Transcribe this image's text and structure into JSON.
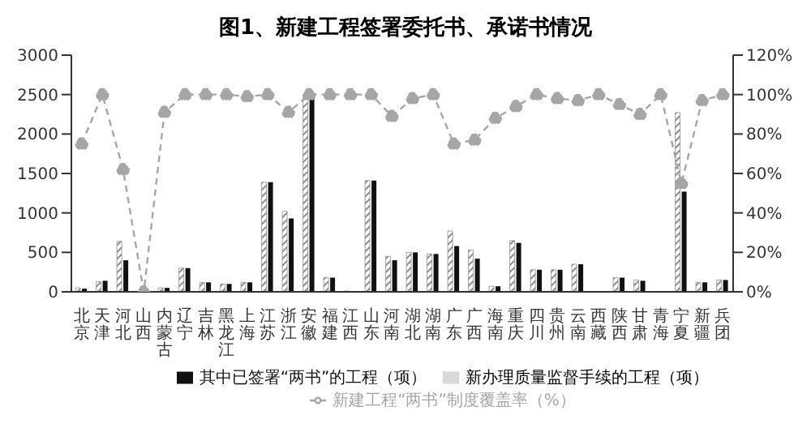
{
  "chart_data": {
    "type": "bar",
    "title": "图1、新建工程签署委托书、承诺书情况",
    "categories": [
      "北京",
      "天津",
      "河北",
      "山西",
      "内蒙古",
      "辽宁",
      "吉林",
      "黑龙江",
      "上海",
      "江苏",
      "浙江",
      "安徽",
      "福建",
      "江西",
      "山东",
      "河南",
      "湖北",
      "湖南",
      "广东",
      "广西",
      "海南",
      "重庆",
      "四川",
      "贵州",
      "云南",
      "西藏",
      "陕西",
      "甘肃",
      "青海",
      "宁夏",
      "新疆",
      "兵团"
    ],
    "series": [
      {
        "name": "新办理质量监督手续的工程（项）",
        "color": "#8c8c8c",
        "values": [
          50,
          130,
          640,
          0,
          50,
          300,
          120,
          100,
          120,
          1390,
          1020,
          2500,
          180,
          10,
          1410,
          450,
          500,
          480,
          770,
          530,
          70,
          650,
          280,
          280,
          350,
          0,
          180,
          150,
          0,
          2270,
          120,
          150
        ]
      },
      {
        "name": "其中已签署“两书”的工程（项）",
        "color": "#111111",
        "values": [
          40,
          140,
          400,
          0,
          50,
          300,
          120,
          100,
          120,
          1390,
          930,
          2450,
          180,
          10,
          1410,
          400,
          500,
          480,
          580,
          420,
          70,
          620,
          280,
          280,
          350,
          0,
          180,
          140,
          0,
          1270,
          120,
          150
        ]
      },
      {
        "name": "新建工程“两书”制度覆盖率（%）",
        "type": "line",
        "axis": "y2",
        "color": "#a6a6a6",
        "marker": "circle",
        "line_style": "dashed",
        "values": [
          75,
          100,
          62,
          0,
          91,
          100,
          100,
          100,
          99,
          100,
          91,
          100,
          100,
          100,
          100,
          89,
          98,
          100,
          75,
          77,
          88,
          94,
          100,
          98,
          97,
          100,
          95,
          90,
          100,
          55,
          97,
          100
        ]
      }
    ],
    "ylim": [
      0,
      3000
    ],
    "yticks": [
      0,
      500,
      1000,
      1500,
      2000,
      2500,
      3000
    ],
    "y2lim": [
      0,
      120
    ],
    "y2ticks": [
      {
        "value": 0,
        "label": "0%"
      },
      {
        "value": 20,
        "label": "20%"
      },
      {
        "value": 40,
        "label": "40%"
      },
      {
        "value": 60,
        "label": "60%"
      },
      {
        "value": 80,
        "label": "80%"
      },
      {
        "value": 100,
        "label": "100%"
      },
      {
        "value": 120,
        "label": "120%"
      }
    ],
    "grid": false,
    "legend": "bottom"
  }
}
